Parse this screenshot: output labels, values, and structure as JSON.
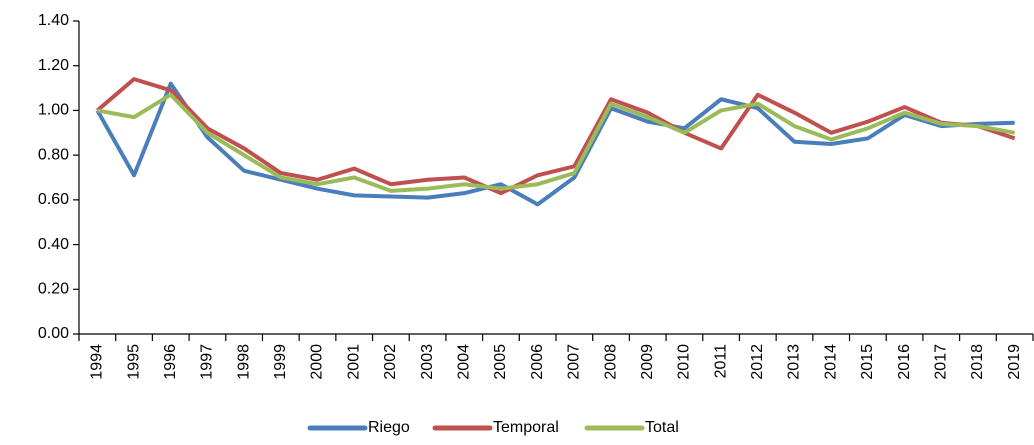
{
  "chart_data": {
    "type": "line",
    "categories": [
      "1994",
      "1995",
      "1996",
      "1997",
      "1998",
      "1999",
      "2000",
      "2001",
      "2002",
      "2003",
      "2004",
      "2005",
      "2006",
      "2007",
      "2008",
      "2009",
      "2010",
      "2011",
      "2012",
      "2013",
      "2014",
      "2015",
      "2016",
      "2017",
      "2018",
      "2019"
    ],
    "series": [
      {
        "name": "Riego",
        "color": "#4a7ebb",
        "values": [
          1.0,
          0.71,
          1.12,
          0.88,
          0.73,
          0.69,
          0.65,
          0.62,
          0.615,
          0.61,
          0.63,
          0.67,
          0.58,
          0.7,
          1.01,
          0.95,
          0.92,
          1.05,
          1.01,
          0.86,
          0.85,
          0.875,
          0.98,
          0.93,
          0.94,
          0.945
        ]
      },
      {
        "name": "Temporal",
        "color": "#c0504d",
        "values": [
          1.0,
          1.14,
          1.09,
          0.92,
          0.83,
          0.72,
          0.69,
          0.74,
          0.67,
          0.69,
          0.7,
          0.63,
          0.71,
          0.75,
          1.05,
          0.99,
          0.9,
          0.83,
          1.07,
          0.99,
          0.9,
          0.95,
          1.015,
          0.945,
          0.93,
          0.875
        ]
      },
      {
        "name": "Total",
        "color": "#9bbb59",
        "values": [
          1.0,
          0.97,
          1.07,
          0.9,
          0.8,
          0.7,
          0.67,
          0.7,
          0.64,
          0.65,
          0.67,
          0.65,
          0.67,
          0.72,
          1.03,
          0.97,
          0.9,
          1.0,
          1.03,
          0.93,
          0.87,
          0.92,
          0.99,
          0.94,
          0.93,
          0.9
        ]
      }
    ],
    "ylim": [
      0,
      1.4
    ],
    "yticks": [
      {
        "value": 0,
        "label": "0.00"
      },
      {
        "value": 0.2,
        "label": "0.20"
      },
      {
        "value": 0.4,
        "label": "0.40"
      },
      {
        "value": 0.6,
        "label": "0.60"
      },
      {
        "value": 0.8,
        "label": "0.80"
      },
      {
        "value": 1.0,
        "label": "1.00"
      },
      {
        "value": 1.2,
        "label": "1.20"
      },
      {
        "value": 1.4,
        "label": "1.40"
      }
    ],
    "grid": false,
    "legend": "bottom"
  }
}
